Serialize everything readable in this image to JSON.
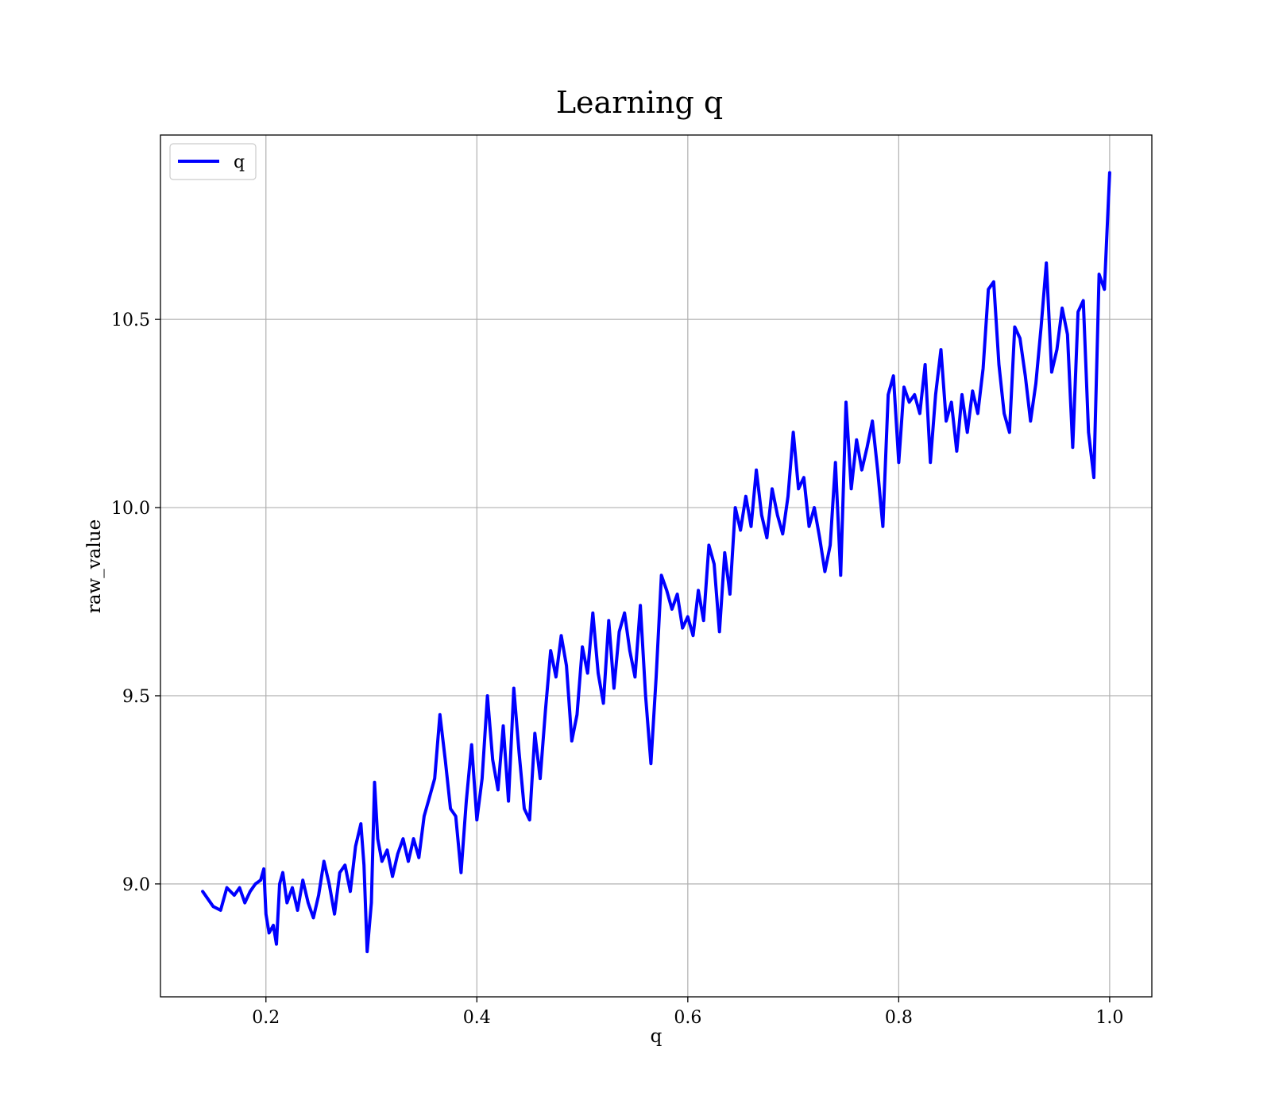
{
  "chart_data": {
    "type": "line",
    "title": "Learning q",
    "xlabel": "q",
    "ylabel": "raw_value",
    "xlim": [
      0.1,
      1.04
    ],
    "ylim": [
      8.7,
      10.99
    ],
    "xticks": [
      0.2,
      0.4,
      0.6,
      0.8,
      1.0
    ],
    "xtick_labels": [
      "0.2",
      "0.4",
      "0.6",
      "0.8",
      "1.0"
    ],
    "yticks": [
      9.0,
      9.5,
      10.0,
      10.5
    ],
    "ytick_labels": [
      "9.0",
      "9.5",
      "10.0",
      "10.5"
    ],
    "grid": true,
    "legend": {
      "position": "top-left",
      "entries": [
        "q"
      ]
    },
    "series": [
      {
        "name": "q",
        "color": "#0000ff",
        "x": [
          0.14,
          0.15,
          0.157,
          0.163,
          0.17,
          0.175,
          0.18,
          0.185,
          0.19,
          0.195,
          0.198,
          0.2,
          0.203,
          0.207,
          0.21,
          0.213,
          0.216,
          0.22,
          0.225,
          0.23,
          0.235,
          0.24,
          0.245,
          0.25,
          0.255,
          0.26,
          0.265,
          0.27,
          0.275,
          0.28,
          0.285,
          0.29,
          0.293,
          0.296,
          0.3,
          0.303,
          0.306,
          0.31,
          0.315,
          0.32,
          0.325,
          0.33,
          0.335,
          0.34,
          0.345,
          0.35,
          0.355,
          0.36,
          0.365,
          0.37,
          0.375,
          0.38,
          0.385,
          0.39,
          0.395,
          0.4,
          0.405,
          0.41,
          0.415,
          0.42,
          0.425,
          0.43,
          0.435,
          0.44,
          0.445,
          0.45,
          0.455,
          0.46,
          0.465,
          0.47,
          0.475,
          0.48,
          0.485,
          0.49,
          0.495,
          0.5,
          0.505,
          0.51,
          0.515,
          0.52,
          0.525,
          0.53,
          0.535,
          0.54,
          0.545,
          0.55,
          0.555,
          0.56,
          0.565,
          0.57,
          0.575,
          0.58,
          0.585,
          0.59,
          0.595,
          0.6,
          0.605,
          0.61,
          0.615,
          0.62,
          0.625,
          0.63,
          0.635,
          0.64,
          0.645,
          0.65,
          0.655,
          0.66,
          0.665,
          0.67,
          0.675,
          0.68,
          0.685,
          0.69,
          0.695,
          0.7,
          0.705,
          0.71,
          0.715,
          0.72,
          0.725,
          0.73,
          0.735,
          0.74,
          0.745,
          0.75,
          0.755,
          0.76,
          0.765,
          0.77,
          0.775,
          0.78,
          0.785,
          0.79,
          0.795,
          0.8,
          0.805,
          0.81,
          0.815,
          0.82,
          0.825,
          0.83,
          0.835,
          0.84,
          0.845,
          0.85,
          0.855,
          0.86,
          0.865,
          0.87,
          0.875,
          0.88,
          0.885,
          0.89,
          0.895,
          0.9,
          0.905,
          0.91,
          0.915,
          0.92,
          0.925,
          0.93,
          0.935,
          0.94,
          0.945,
          0.95,
          0.955,
          0.96,
          0.965,
          0.97,
          0.975,
          0.98,
          0.985,
          0.99,
          0.995,
          1.0
        ],
        "y": [
          8.98,
          8.94,
          8.93,
          8.99,
          8.97,
          8.99,
          8.95,
          8.98,
          9.0,
          9.01,
          9.04,
          8.92,
          8.87,
          8.89,
          8.84,
          9.0,
          9.03,
          8.95,
          8.99,
          8.93,
          9.01,
          8.95,
          8.91,
          8.97,
          9.06,
          9.0,
          8.92,
          9.03,
          9.05,
          8.98,
          9.1,
          9.16,
          9.05,
          8.82,
          8.95,
          9.27,
          9.12,
          9.06,
          9.09,
          9.02,
          9.08,
          9.12,
          9.06,
          9.12,
          9.07,
          9.18,
          9.23,
          9.28,
          9.45,
          9.33,
          9.2,
          9.18,
          9.03,
          9.22,
          9.37,
          9.17,
          9.28,
          9.5,
          9.33,
          9.25,
          9.42,
          9.22,
          9.52,
          9.35,
          9.2,
          9.17,
          9.4,
          9.28,
          9.46,
          9.62,
          9.55,
          9.66,
          9.58,
          9.38,
          9.45,
          9.63,
          9.56,
          9.72,
          9.56,
          9.48,
          9.7,
          9.52,
          9.67,
          9.72,
          9.62,
          9.55,
          9.74,
          9.5,
          9.32,
          9.55,
          9.82,
          9.78,
          9.73,
          9.77,
          9.68,
          9.71,
          9.66,
          9.78,
          9.7,
          9.9,
          9.85,
          9.67,
          9.88,
          9.77,
          10.0,
          9.94,
          10.03,
          9.95,
          10.1,
          9.98,
          9.92,
          10.05,
          9.98,
          9.93,
          10.03,
          10.2,
          10.05,
          10.08,
          9.95,
          10.0,
          9.92,
          9.83,
          9.9,
          10.12,
          9.82,
          10.28,
          10.05,
          10.18,
          10.1,
          10.16,
          10.23,
          10.1,
          9.95,
          10.3,
          10.35,
          10.12,
          10.32,
          10.28,
          10.3,
          10.25,
          10.38,
          10.12,
          10.3,
          10.42,
          10.23,
          10.28,
          10.15,
          10.3,
          10.2,
          10.31,
          10.25,
          10.37,
          10.58,
          10.6,
          10.38,
          10.25,
          10.2,
          10.48,
          10.45,
          10.35,
          10.23,
          10.33,
          10.48,
          10.65,
          10.36,
          10.42,
          10.53,
          10.46,
          10.16,
          10.52,
          10.55,
          10.2,
          10.08,
          10.62,
          10.58,
          10.89
        ]
      }
    ]
  }
}
